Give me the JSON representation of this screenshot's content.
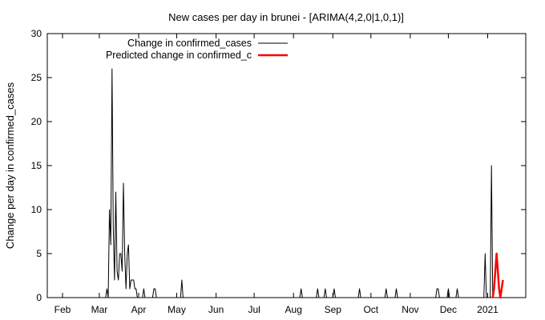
{
  "chart_data": {
    "type": "line",
    "title": "New cases per day in brunei -  [ARIMA(4,2,0|1,0,1)]",
    "xlabel": "",
    "ylabel": "Change per day in confirmed_cases",
    "ylim": [
      0,
      30
    ],
    "xlim": [
      "2020-01-20",
      "2021-01-31"
    ],
    "yticks": [
      0,
      5,
      10,
      15,
      20,
      25,
      30
    ],
    "xticks": [
      {
        "label": "Feb",
        "date": "2020-02-01"
      },
      {
        "label": "Mar",
        "date": "2020-03-01"
      },
      {
        "label": "Apr",
        "date": "2020-04-01"
      },
      {
        "label": "May",
        "date": "2020-05-01"
      },
      {
        "label": "Jun",
        "date": "2020-06-01"
      },
      {
        "label": "Jul",
        "date": "2020-07-01"
      },
      {
        "label": "Aug",
        "date": "2020-08-01"
      },
      {
        "label": "Sep",
        "date": "2020-09-01"
      },
      {
        "label": "Oct",
        "date": "2020-10-01"
      },
      {
        "label": "Nov",
        "date": "2020-11-01"
      },
      {
        "label": "Dec",
        "date": "2020-12-01"
      },
      {
        "label": "2021",
        "date": "2021-01-01"
      }
    ],
    "grid": false,
    "legend_position": "top-left",
    "series": [
      {
        "name": "Change in confirmed_cases",
        "color": "#000000",
        "points": [
          [
            "2020-03-06",
            0
          ],
          [
            "2020-03-07",
            1
          ],
          [
            "2020-03-08",
            0
          ],
          [
            "2020-03-09",
            10
          ],
          [
            "2020-03-10",
            6
          ],
          [
            "2020-03-11",
            26
          ],
          [
            "2020-03-12",
            8
          ],
          [
            "2020-03-13",
            2
          ],
          [
            "2020-03-14",
            12
          ],
          [
            "2020-03-15",
            3
          ],
          [
            "2020-03-16",
            2
          ],
          [
            "2020-03-17",
            5
          ],
          [
            "2020-03-18",
            5
          ],
          [
            "2020-03-19",
            3
          ],
          [
            "2020-03-20",
            13
          ],
          [
            "2020-03-21",
            5
          ],
          [
            "2020-03-22",
            1
          ],
          [
            "2020-03-23",
            5
          ],
          [
            "2020-03-24",
            6
          ],
          [
            "2020-03-25",
            1
          ],
          [
            "2020-03-26",
            2
          ],
          [
            "2020-03-27",
            2
          ],
          [
            "2020-03-28",
            2
          ],
          [
            "2020-03-29",
            1
          ],
          [
            "2020-03-30",
            1
          ],
          [
            "2020-03-31",
            0
          ],
          [
            "2020-04-04",
            0
          ],
          [
            "2020-04-05",
            1
          ],
          [
            "2020-04-06",
            0
          ],
          [
            "2020-04-12",
            0
          ],
          [
            "2020-04-13",
            1
          ],
          [
            "2020-04-14",
            1
          ],
          [
            "2020-04-15",
            0
          ],
          [
            "2020-04-30",
            0
          ],
          [
            "2020-05-04",
            0
          ],
          [
            "2020-05-05",
            2
          ],
          [
            "2020-05-06",
            0
          ],
          [
            "2020-08-06",
            0
          ],
          [
            "2020-08-07",
            1
          ],
          [
            "2020-08-08",
            0
          ],
          [
            "2020-08-19",
            0
          ],
          [
            "2020-08-20",
            1
          ],
          [
            "2020-08-21",
            0
          ],
          [
            "2020-08-25",
            0
          ],
          [
            "2020-08-26",
            1
          ],
          [
            "2020-08-27",
            0
          ],
          [
            "2020-09-01",
            0
          ],
          [
            "2020-09-02",
            1
          ],
          [
            "2020-09-03",
            0
          ],
          [
            "2020-09-21",
            0
          ],
          [
            "2020-09-22",
            1
          ],
          [
            "2020-09-23",
            0
          ],
          [
            "2020-10-12",
            0
          ],
          [
            "2020-10-13",
            1
          ],
          [
            "2020-10-14",
            0
          ],
          [
            "2020-10-20",
            0
          ],
          [
            "2020-10-21",
            1
          ],
          [
            "2020-10-22",
            0
          ],
          [
            "2020-11-21",
            0
          ],
          [
            "2020-11-22",
            1
          ],
          [
            "2020-11-23",
            1
          ],
          [
            "2020-11-24",
            0
          ],
          [
            "2020-11-30",
            0
          ],
          [
            "2020-12-01",
            1
          ],
          [
            "2020-12-02",
            0
          ],
          [
            "2020-12-07",
            0
          ],
          [
            "2020-12-08",
            1
          ],
          [
            "2020-12-09",
            0
          ],
          [
            "2020-12-29",
            0
          ],
          [
            "2020-12-30",
            5
          ],
          [
            "2020-12-31",
            0
          ],
          [
            "2021-01-01",
            0
          ],
          [
            "2021-01-03",
            0
          ],
          [
            "2021-01-04",
            15
          ],
          [
            "2021-01-05",
            0
          ]
        ]
      },
      {
        "name": "Predicted change in confirmed_c",
        "color": "#ff0000",
        "points": [
          [
            "2021-01-05",
            0
          ],
          [
            "2021-01-06",
            1
          ],
          [
            "2021-01-07",
            3
          ],
          [
            "2021-01-08",
            5
          ],
          [
            "2021-01-09",
            3
          ],
          [
            "2021-01-10",
            1
          ],
          [
            "2021-01-11",
            0
          ],
          [
            "2021-01-12",
            1
          ],
          [
            "2021-01-13",
            2
          ]
        ]
      }
    ]
  }
}
